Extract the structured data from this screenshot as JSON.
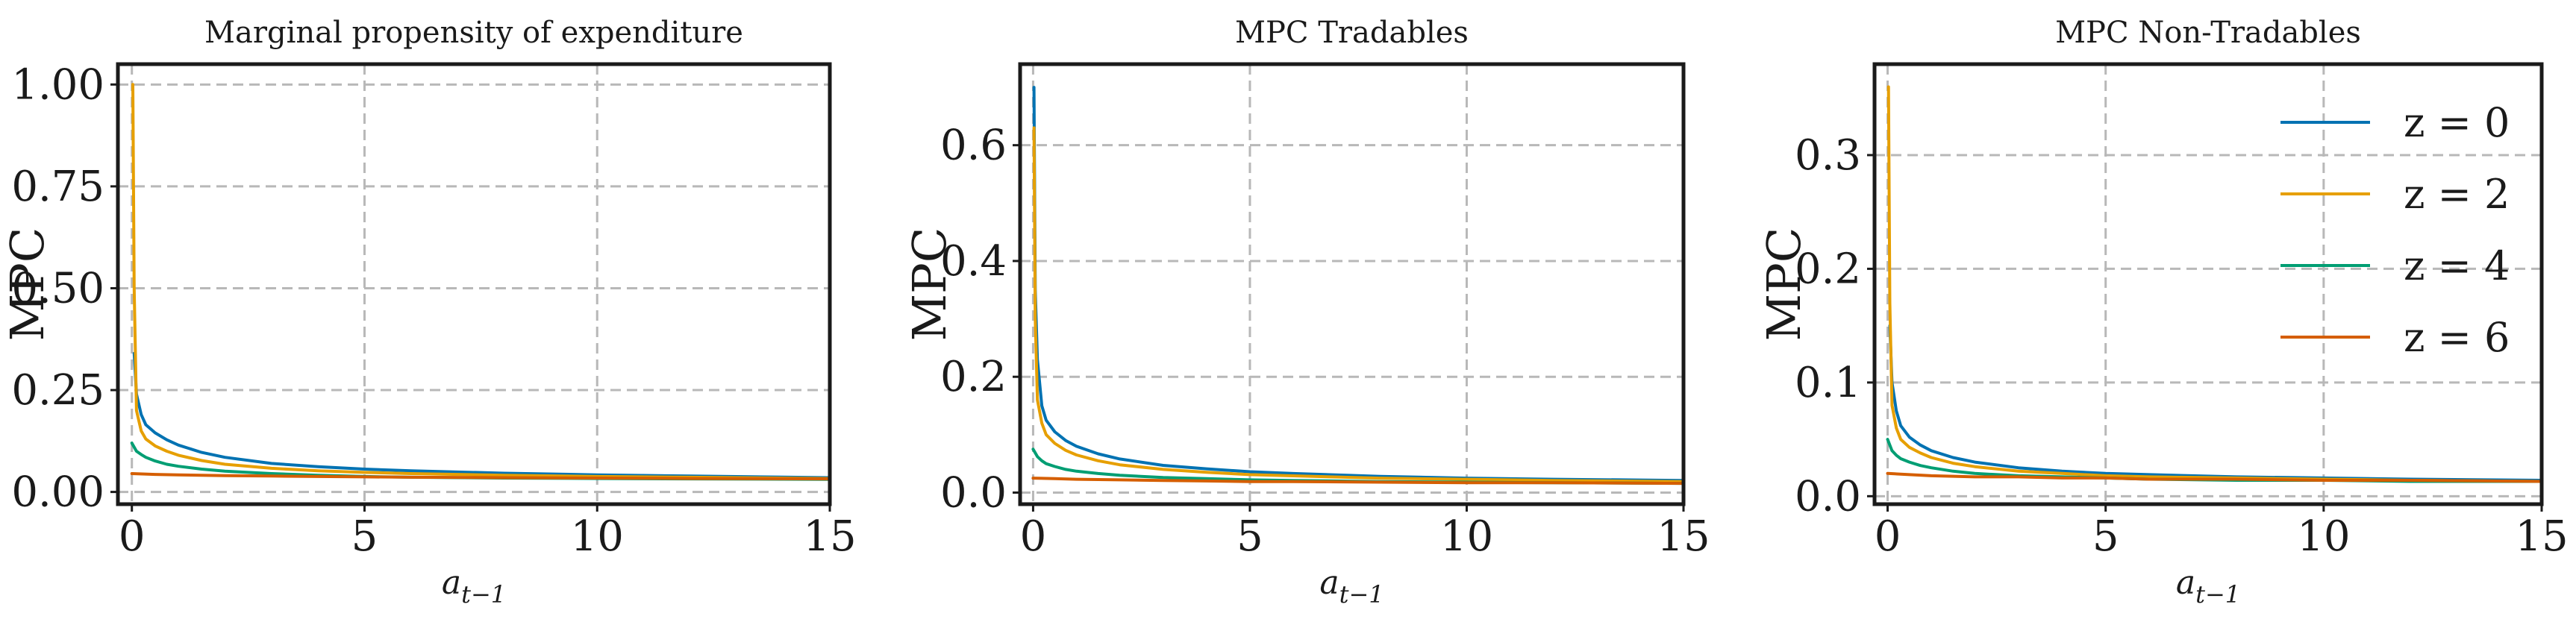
{
  "chart_data": [
    {
      "type": "line",
      "title": "Marginal propensity of expenditure",
      "ylabel": "MPC",
      "xlabel": "a",
      "xlabel_sub": "t−1",
      "xlim": [
        -0.3,
        15
      ],
      "ylim": [
        -0.03,
        1.05
      ],
      "xticks": [
        0,
        5,
        10,
        15
      ],
      "yticks": [
        0.0,
        0.25,
        0.5,
        0.75,
        1.0
      ],
      "ytick_labels": [
        "0.00",
        "0.25",
        "0.50",
        "0.75",
        "1.00"
      ],
      "grid": true,
      "series": [
        {
          "name": "z = 0",
          "color": "#0072B2",
          "x": [
            0.05,
            0.1,
            0.2,
            0.3,
            0.5,
            0.75,
            1,
            1.5,
            2,
            3,
            4,
            5,
            6,
            8,
            10,
            12,
            15
          ],
          "y": [
            0.34,
            0.24,
            0.19,
            0.165,
            0.145,
            0.128,
            0.115,
            0.097,
            0.085,
            0.07,
            0.062,
            0.056,
            0.052,
            0.046,
            0.042,
            0.039,
            0.035
          ]
        },
        {
          "name": "z = 2",
          "color": "#E69F00",
          "x": [
            0.02,
            0.05,
            0.1,
            0.2,
            0.3,
            0.5,
            0.75,
            1,
            1.5,
            2,
            3,
            4,
            5,
            6,
            8,
            10,
            12,
            15
          ],
          "y": [
            1.0,
            0.5,
            0.2,
            0.15,
            0.13,
            0.113,
            0.1,
            0.09,
            0.077,
            0.068,
            0.058,
            0.052,
            0.048,
            0.045,
            0.041,
            0.038,
            0.036,
            0.033
          ]
        },
        {
          "name": "z = 4",
          "color": "#009E73",
          "x": [
            0.0,
            0.1,
            0.2,
            0.3,
            0.5,
            0.75,
            1,
            1.5,
            2,
            3,
            4,
            5,
            6,
            8,
            10,
            12,
            15
          ],
          "y": [
            0.12,
            0.1,
            0.092,
            0.085,
            0.076,
            0.068,
            0.063,
            0.056,
            0.051,
            0.045,
            0.041,
            0.038,
            0.036,
            0.034,
            0.033,
            0.032,
            0.031
          ]
        },
        {
          "name": "z = 6",
          "color": "#D55E00",
          "x": [
            0.0,
            0.5,
            1,
            2,
            3,
            4,
            5,
            6,
            8,
            10,
            12,
            15
          ],
          "y": [
            0.045,
            0.043,
            0.042,
            0.04,
            0.039,
            0.038,
            0.037,
            0.036,
            0.035,
            0.034,
            0.033,
            0.032
          ]
        }
      ]
    },
    {
      "type": "line",
      "title": "MPC Tradables",
      "ylabel": "MPC",
      "xlabel": "a",
      "xlabel_sub": "t−1",
      "xlim": [
        -0.3,
        15
      ],
      "ylim": [
        -0.02,
        0.74
      ],
      "xticks": [
        0,
        5,
        10,
        15
      ],
      "yticks": [
        0.0,
        0.2,
        0.4,
        0.6
      ],
      "ytick_labels": [
        "0.0",
        "0.2",
        "0.4",
        "0.6"
      ],
      "grid": true,
      "series": [
        {
          "name": "z = 0",
          "color": "#0072B2",
          "x": [
            0.02,
            0.05,
            0.1,
            0.2,
            0.3,
            0.5,
            0.75,
            1,
            1.5,
            2,
            3,
            4,
            5,
            6,
            8,
            10,
            12,
            15
          ],
          "y": [
            0.7,
            0.35,
            0.23,
            0.15,
            0.125,
            0.105,
            0.09,
            0.08,
            0.067,
            0.058,
            0.047,
            0.041,
            0.036,
            0.033,
            0.028,
            0.025,
            0.023,
            0.021
          ]
        },
        {
          "name": "z = 2",
          "color": "#E69F00",
          "x": [
            0.02,
            0.05,
            0.1,
            0.2,
            0.3,
            0.5,
            0.75,
            1,
            1.5,
            2,
            3,
            4,
            5,
            6,
            8,
            10,
            12,
            15
          ],
          "y": [
            0.63,
            0.3,
            0.16,
            0.12,
            0.1,
            0.085,
            0.073,
            0.065,
            0.055,
            0.048,
            0.04,
            0.035,
            0.031,
            0.029,
            0.025,
            0.023,
            0.021,
            0.019
          ]
        },
        {
          "name": "z = 4",
          "color": "#009E73",
          "x": [
            0.0,
            0.1,
            0.2,
            0.3,
            0.5,
            0.75,
            1,
            1.5,
            2,
            3,
            4,
            5,
            6,
            8,
            10,
            12,
            15
          ],
          "y": [
            0.075,
            0.062,
            0.055,
            0.05,
            0.045,
            0.04,
            0.037,
            0.033,
            0.03,
            0.026,
            0.024,
            0.022,
            0.021,
            0.019,
            0.018,
            0.017,
            0.016
          ]
        },
        {
          "name": "z = 6",
          "color": "#D55E00",
          "x": [
            0.0,
            0.5,
            1,
            2,
            3,
            4,
            5,
            6,
            8,
            10,
            12,
            15
          ],
          "y": [
            0.025,
            0.024,
            0.023,
            0.022,
            0.021,
            0.02,
            0.019,
            0.019,
            0.018,
            0.017,
            0.017,
            0.016
          ]
        }
      ]
    },
    {
      "type": "line",
      "title": "MPC Non-Tradables",
      "ylabel": "MPC",
      "xlabel": "a",
      "xlabel_sub": "t−1",
      "xlim": [
        -0.3,
        15
      ],
      "ylim": [
        -0.007,
        0.38
      ],
      "xticks": [
        0,
        5,
        10,
        15
      ],
      "yticks": [
        0.0,
        0.1,
        0.2,
        0.3
      ],
      "ytick_labels": [
        "0.0",
        "0.1",
        "0.2",
        "0.3"
      ],
      "grid": true,
      "legend": "top-right",
      "series": [
        {
          "name": "z = 0",
          "color": "#0072B2",
          "x": [
            0.05,
            0.1,
            0.2,
            0.3,
            0.5,
            0.75,
            1,
            1.5,
            2,
            3,
            4,
            5,
            6,
            8,
            10,
            12,
            15
          ],
          "y": [
            0.15,
            0.1,
            0.075,
            0.062,
            0.052,
            0.045,
            0.04,
            0.034,
            0.03,
            0.025,
            0.022,
            0.02,
            0.019,
            0.017,
            0.016,
            0.015,
            0.014
          ]
        },
        {
          "name": "z = 2",
          "color": "#E69F00",
          "x": [
            0.02,
            0.05,
            0.1,
            0.2,
            0.3,
            0.5,
            0.75,
            1,
            1.5,
            2,
            3,
            4,
            5,
            6,
            8,
            10,
            12,
            15
          ],
          "y": [
            0.36,
            0.17,
            0.08,
            0.06,
            0.05,
            0.043,
            0.038,
            0.034,
            0.029,
            0.026,
            0.022,
            0.02,
            0.018,
            0.017,
            0.016,
            0.015,
            0.014,
            0.013
          ]
        },
        {
          "name": "z = 4",
          "color": "#009E73",
          "x": [
            0.0,
            0.1,
            0.2,
            0.3,
            0.5,
            0.75,
            1,
            1.5,
            2,
            3,
            4,
            5,
            6,
            8,
            10,
            12,
            15
          ],
          "y": [
            0.05,
            0.04,
            0.036,
            0.033,
            0.03,
            0.027,
            0.025,
            0.022,
            0.02,
            0.018,
            0.017,
            0.016,
            0.015,
            0.014,
            0.014,
            0.013,
            0.013
          ]
        },
        {
          "name": "z = 6",
          "color": "#D55E00",
          "x": [
            0.0,
            0.5,
            1,
            2,
            3,
            4,
            5,
            6,
            8,
            10,
            12,
            15
          ],
          "y": [
            0.02,
            0.019,
            0.018,
            0.017,
            0.017,
            0.016,
            0.016,
            0.015,
            0.015,
            0.014,
            0.014,
            0.013
          ]
        }
      ]
    }
  ]
}
